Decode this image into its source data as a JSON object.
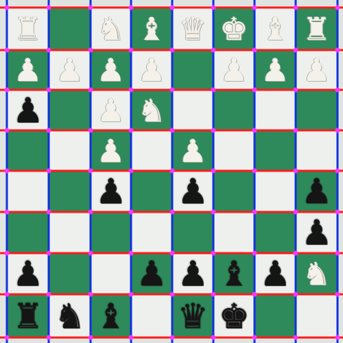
{
  "board": {
    "files": 8,
    "ranks": 8,
    "light_color": "#eef0ee",
    "dark_color": "#2e8a5a",
    "pieces": [
      {
        "color": "white",
        "type": "rook",
        "glyph": "♜",
        "file": 0,
        "rank": 0
      },
      {
        "color": "white",
        "type": "knight",
        "glyph": "♞",
        "file": 2,
        "rank": 0
      },
      {
        "color": "white",
        "type": "bishop",
        "glyph": "♝",
        "file": 3,
        "rank": 0
      },
      {
        "color": "white",
        "type": "queen",
        "glyph": "♛",
        "file": 4,
        "rank": 0
      },
      {
        "color": "white",
        "type": "king",
        "glyph": "♚",
        "file": 5,
        "rank": 0
      },
      {
        "color": "white",
        "type": "bishop",
        "glyph": "♝",
        "file": 6,
        "rank": 0
      },
      {
        "color": "white",
        "type": "rook",
        "glyph": "♜",
        "file": 7,
        "rank": 0
      },
      {
        "color": "white",
        "type": "pawn",
        "glyph": "♟",
        "file": 0,
        "rank": 1
      },
      {
        "color": "white",
        "type": "pawn",
        "glyph": "♟",
        "file": 1,
        "rank": 1
      },
      {
        "color": "white",
        "type": "pawn",
        "glyph": "♟",
        "file": 2,
        "rank": 1
      },
      {
        "color": "white",
        "type": "pawn",
        "glyph": "♟",
        "file": 3,
        "rank": 1
      },
      {
        "color": "white",
        "type": "pawn",
        "glyph": "♟",
        "file": 5,
        "rank": 1
      },
      {
        "color": "white",
        "type": "pawn",
        "glyph": "♟",
        "file": 6,
        "rank": 1
      },
      {
        "color": "white",
        "type": "pawn",
        "glyph": "♟",
        "file": 7,
        "rank": 1
      },
      {
        "color": "white",
        "type": "pawn",
        "glyph": "♟",
        "file": 2,
        "rank": 2
      },
      {
        "color": "white",
        "type": "knight",
        "glyph": "♞",
        "file": 3,
        "rank": 2
      },
      {
        "color": "white",
        "type": "pawn",
        "glyph": "♟",
        "file": 2,
        "rank": 3
      },
      {
        "color": "white",
        "type": "pawn",
        "glyph": "♟",
        "file": 4,
        "rank": 3
      },
      {
        "color": "black",
        "type": "pawn",
        "glyph": "♟",
        "file": 0,
        "rank": 2
      },
      {
        "color": "black",
        "type": "pawn",
        "glyph": "♟",
        "file": 2,
        "rank": 4
      },
      {
        "color": "black",
        "type": "pawn",
        "glyph": "♟",
        "file": 4,
        "rank": 4
      },
      {
        "color": "black",
        "type": "pawn",
        "glyph": "♟",
        "file": 7,
        "rank": 4
      },
      {
        "color": "black",
        "type": "pawn",
        "glyph": "♟",
        "file": 7,
        "rank": 5
      },
      {
        "color": "black",
        "type": "pawn",
        "glyph": "♟",
        "file": 0,
        "rank": 6
      },
      {
        "color": "black",
        "type": "pawn",
        "glyph": "♟",
        "file": 3,
        "rank": 6
      },
      {
        "color": "black",
        "type": "pawn",
        "glyph": "♟",
        "file": 4,
        "rank": 6
      },
      {
        "color": "black",
        "type": "pawn",
        "glyph": "♟",
        "file": 6,
        "rank": 6
      },
      {
        "color": "black",
        "type": "bishop",
        "glyph": "♝",
        "file": 5,
        "rank": 6
      },
      {
        "color": "black",
        "type": "rook",
        "glyph": "♜",
        "file": 0,
        "rank": 7
      },
      {
        "color": "black",
        "type": "knight",
        "glyph": "♞",
        "file": 1,
        "rank": 7
      },
      {
        "color": "black",
        "type": "bishop",
        "glyph": "♝",
        "file": 2,
        "rank": 7
      },
      {
        "color": "black",
        "type": "queen",
        "glyph": "♛",
        "file": 4,
        "rank": 7
      },
      {
        "color": "black",
        "type": "king",
        "glyph": "♚",
        "file": 5,
        "rank": 7
      },
      {
        "color": "white",
        "type": "knight",
        "glyph": "♞",
        "file": 7,
        "rank": 6
      }
    ]
  },
  "grid_overlay": {
    "horizontal_line_color": "#ff1a1a",
    "vertical_line_color": "#1030e0",
    "intersection_color": "#ff33ff"
  }
}
